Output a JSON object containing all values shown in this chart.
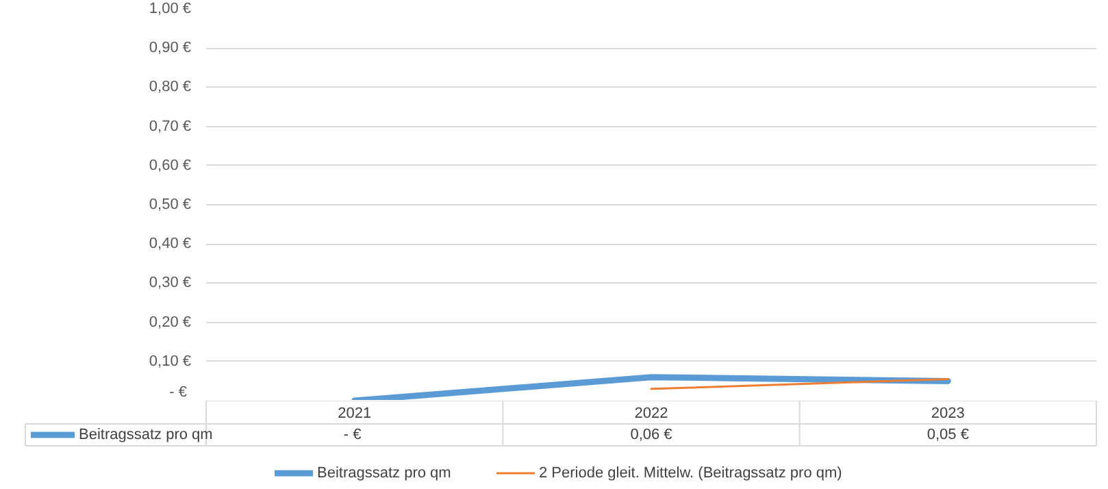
{
  "chart_data": {
    "type": "line",
    "categories": [
      "2021",
      "2022",
      "2023"
    ],
    "series": [
      {
        "name": "Beitragssatz pro qm",
        "color": "#5b9bd5",
        "values": [
          0,
          0.06,
          0.05
        ],
        "value_labels": [
          "-  €",
          "0,06 €",
          "0,05 €"
        ]
      },
      {
        "name": "2 Periode gleit. Mittelw. (Beitragssatz pro qm)",
        "color": "#ed7d31",
        "values": [
          null,
          0.03,
          0.055
        ]
      }
    ],
    "ylim": [
      0,
      1
    ],
    "yticks": [
      {
        "value": 0,
        "label": "-  €"
      },
      {
        "value": 0.1,
        "label": "0,10 €"
      },
      {
        "value": 0.2,
        "label": "0,20 €"
      },
      {
        "value": 0.3,
        "label": "0,30 €"
      },
      {
        "value": 0.4,
        "label": "0,40 €"
      },
      {
        "value": 0.5,
        "label": "0,50 €"
      },
      {
        "value": 0.6,
        "label": "0,60 €"
      },
      {
        "value": 0.7,
        "label": "0,70 €"
      },
      {
        "value": 0.8,
        "label": "0,80 €"
      },
      {
        "value": 0.9,
        "label": "0,90 €"
      },
      {
        "value": 1,
        "label": "1,00 €"
      }
    ],
    "grid": "y",
    "legend": "bottom"
  }
}
